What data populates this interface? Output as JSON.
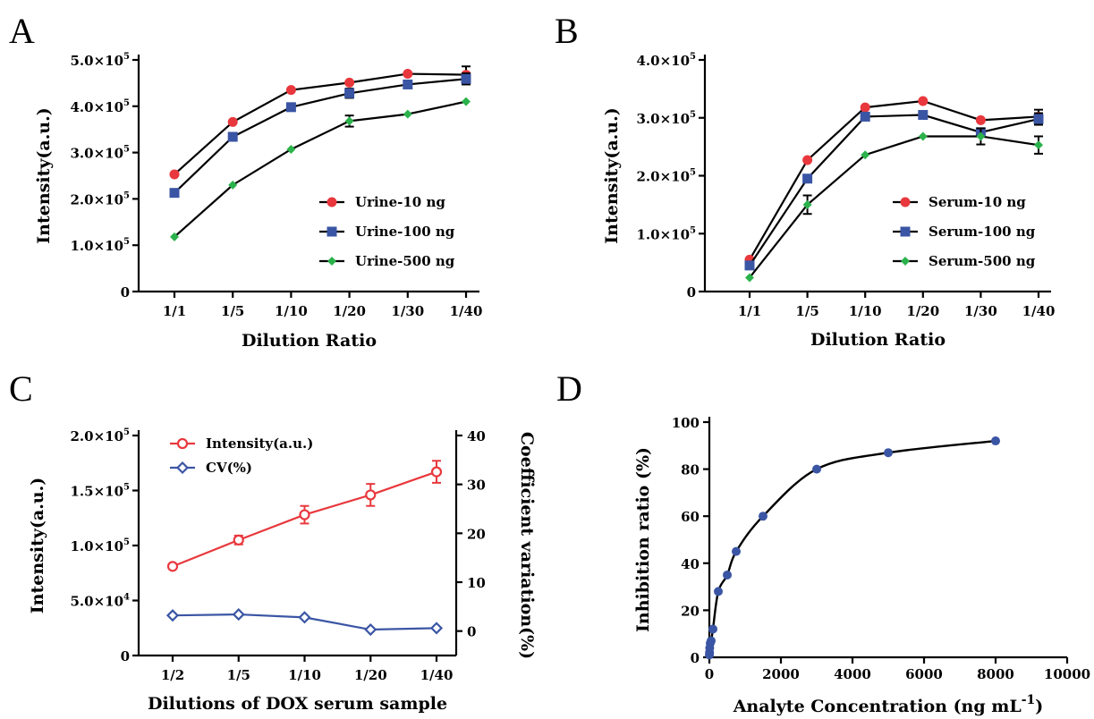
{
  "chart_data": [
    {
      "panel": "A",
      "type": "line",
      "xlabel": "Dilution Ratio",
      "ylabel": "Intensity(a.u.)",
      "categories": [
        "1/1",
        "1/5",
        "1/10",
        "1/20",
        "1/30",
        "1/40"
      ],
      "ylim": [
        0,
        500000
      ],
      "yticks": [
        {
          "value": 0,
          "base": "0",
          "exp": ""
        },
        {
          "value": 100000,
          "base": "1.0×10",
          "exp": "5"
        },
        {
          "value": 200000,
          "base": "2.0×10",
          "exp": "5"
        },
        {
          "value": 300000,
          "base": "3.0×10",
          "exp": "5"
        },
        {
          "value": 400000,
          "base": "4.0×10",
          "exp": "5"
        },
        {
          "value": 500000,
          "base": "5.0×10",
          "exp": "5"
        }
      ],
      "legend_position": "bottom-right",
      "series": [
        {
          "name": "Urine-10 ng",
          "color": "#e8383d",
          "marker": "circle",
          "values": [
            253000,
            366000,
            435000,
            451000,
            470000,
            468000
          ],
          "errors": [
            0,
            0,
            0,
            0,
            0,
            18000
          ]
        },
        {
          "name": "Urine-100 ng",
          "color": "#3a55a4",
          "marker": "square",
          "values": [
            213000,
            334000,
            398000,
            428000,
            447000,
            459000
          ],
          "errors": [
            0,
            0,
            0,
            10000,
            0,
            12000
          ]
        },
        {
          "name": "Urine-500 ng",
          "color": "#2bb24c",
          "marker": "diamond",
          "values": [
            118000,
            230000,
            307000,
            368000,
            383000,
            410000
          ],
          "errors": [
            0,
            0,
            0,
            12000,
            0,
            0
          ]
        }
      ]
    },
    {
      "panel": "B",
      "type": "line",
      "xlabel": "Dilution Ratio",
      "ylabel": "Intensity(a.u.)",
      "categories": [
        "1/1",
        "1/5",
        "1/10",
        "1/20",
        "1/30",
        "1/40"
      ],
      "ylim": [
        0,
        400000
      ],
      "yticks": [
        {
          "value": 0,
          "base": "0",
          "exp": ""
        },
        {
          "value": 100000,
          "base": "1.0×10",
          "exp": "5"
        },
        {
          "value": 200000,
          "base": "2.0×10",
          "exp": "5"
        },
        {
          "value": 300000,
          "base": "3.0×10",
          "exp": "5"
        },
        {
          "value": 400000,
          "base": "4.0×10",
          "exp": "5"
        }
      ],
      "legend_position": "bottom-right",
      "series": [
        {
          "name": "Serum-10 ng",
          "color": "#e8383d",
          "marker": "circle",
          "values": [
            55000,
            227000,
            318000,
            329000,
            296000,
            302000
          ],
          "errors": [
            0,
            0,
            0,
            0,
            0,
            12000
          ]
        },
        {
          "name": "Serum-100 ng",
          "color": "#3a55a4",
          "marker": "square",
          "values": [
            45000,
            195000,
            302000,
            305000,
            275000,
            298000
          ],
          "errors": [
            0,
            0,
            0,
            0,
            0,
            10000
          ]
        },
        {
          "name": "Serum-500 ng",
          "color": "#2bb24c",
          "marker": "diamond",
          "values": [
            24000,
            150000,
            236000,
            268000,
            268000,
            253000
          ],
          "errors": [
            0,
            16000,
            0,
            0,
            14000,
            15000
          ]
        }
      ]
    },
    {
      "panel": "C",
      "type": "line",
      "xlabel": "Dilutions of DOX serum sample",
      "ylabel": "Intensity(a.u.)",
      "y2label": "Coefficient variation(%)",
      "categories": [
        "1/2",
        "1/5",
        "1/10",
        "1/20",
        "1/40"
      ],
      "ylim": [
        0,
        200000
      ],
      "yticks": [
        {
          "value": 0,
          "base": "0",
          "exp": ""
        },
        {
          "value": 50000,
          "base": "5.0×10",
          "exp": "4"
        },
        {
          "value": 100000,
          "base": "1.0×10",
          "exp": "5"
        },
        {
          "value": 150000,
          "base": "1.5×10",
          "exp": "5"
        },
        {
          "value": 200000,
          "base": "2.0×10",
          "exp": "5"
        }
      ],
      "y2lim": [
        -5,
        40
      ],
      "y2ticks": [
        0,
        10,
        20,
        30,
        40
      ],
      "legend_position": "top-left",
      "series": [
        {
          "name": "Intensity(a.u.)",
          "color": "#e8383d",
          "marker": "open-circle",
          "axis": "left",
          "values": [
            81000,
            105000,
            128000,
            146000,
            167000
          ],
          "errors": [
            2000,
            4000,
            8000,
            10000,
            10000
          ]
        },
        {
          "name": "CV(%)",
          "color": "#3a55a4",
          "marker": "open-diamond",
          "axis": "right",
          "values": [
            3.2,
            3.4,
            2.8,
            0.3,
            0.6
          ],
          "errors": [
            0,
            0,
            0,
            0,
            0
          ]
        }
      ]
    },
    {
      "panel": "D",
      "type": "scatter",
      "xlabel": "Analyte Concentration (ng mL",
      "xlabel_sup": "-1",
      "xlabel_end": ")",
      "ylabel": "Inhibition ratio (%)",
      "xlim": [
        0,
        10000
      ],
      "xticks": [
        0,
        2000,
        4000,
        6000,
        8000,
        10000
      ],
      "ylim": [
        0,
        100
      ],
      "yticks": [
        0,
        20,
        40,
        60,
        80,
        100
      ],
      "series": [
        {
          "name": "",
          "color": "#3a55a4",
          "marker": "circle",
          "x": [
            1,
            5,
            10,
            25,
            50,
            100,
            250,
            500,
            750,
            1500,
            3000,
            5000,
            8000
          ],
          "y": [
            1,
            2,
            4,
            6,
            7,
            12,
            28,
            35,
            45,
            60,
            80,
            87,
            92
          ]
        }
      ]
    }
  ]
}
